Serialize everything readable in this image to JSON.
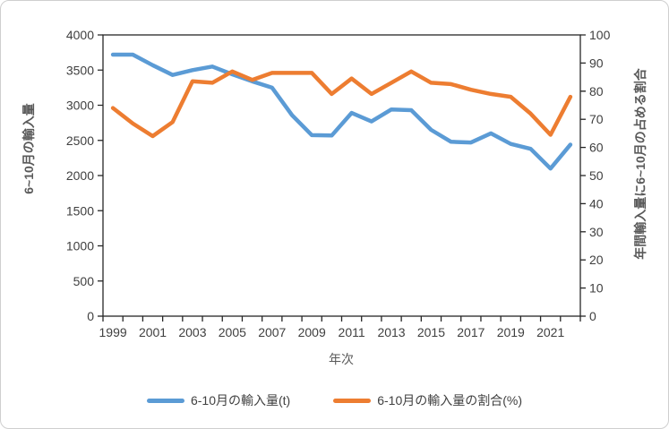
{
  "chart_data": {
    "type": "line",
    "x_years": [
      1999,
      2000,
      2001,
      2002,
      2003,
      2004,
      2005,
      2006,
      2007,
      2008,
      2009,
      2010,
      2011,
      2012,
      2013,
      2014,
      2015,
      2016,
      2017,
      2018,
      2019,
      2020,
      2021,
      2022
    ],
    "x_tick_labels": [
      "1999",
      "2001",
      "2003",
      "2005",
      "2007",
      "2009",
      "2011",
      "2013",
      "2015",
      "2017",
      "2019",
      "2021"
    ],
    "series": [
      {
        "name": "6-10月の輸入量(t)",
        "axis": "left",
        "color": "#5B9BD5",
        "values": [
          3720,
          3720,
          3570,
          3430,
          3500,
          3550,
          3440,
          3340,
          3250,
          2860,
          2575,
          2570,
          2890,
          2770,
          2940,
          2930,
          2650,
          2480,
          2470,
          2600,
          2450,
          2380,
          2100,
          2440
        ]
      },
      {
        "name": "6-10月の輸入量の割合(%)",
        "axis": "right",
        "color": "#ED7D31",
        "values": [
          74,
          68.5,
          64,
          69,
          83.5,
          83,
          87,
          84,
          86.5,
          86.5,
          86.5,
          79,
          84.5,
          79,
          83,
          87,
          83,
          82.5,
          80.5,
          79,
          78,
          72,
          64.5,
          78
        ]
      }
    ],
    "left_axis": {
      "title": "6~10月の輸入量",
      "min": 0,
      "max": 4000,
      "step": 500,
      "tick_labels": [
        "0",
        "500",
        "1000",
        "1500",
        "2000",
        "2500",
        "3000",
        "3500",
        "4000"
      ]
    },
    "right_axis": {
      "title": "年間輸入量に6~10月の占める割合",
      "min": 0,
      "max": 100,
      "step": 10,
      "tick_labels": [
        "0",
        "10",
        "20",
        "30",
        "40",
        "50",
        "60",
        "70",
        "80",
        "90",
        "100"
      ]
    },
    "x_axis": {
      "title": "年次"
    },
    "legend": {
      "position": "bottom"
    },
    "grid": false
  },
  "colors": {
    "series_blue": "#5B9BD5",
    "series_orange": "#ED7D31",
    "axis_line": "#262626",
    "tick_label": "#3F3F3F",
    "title_text": "#595959",
    "frame_border": "#CFCFCF"
  }
}
